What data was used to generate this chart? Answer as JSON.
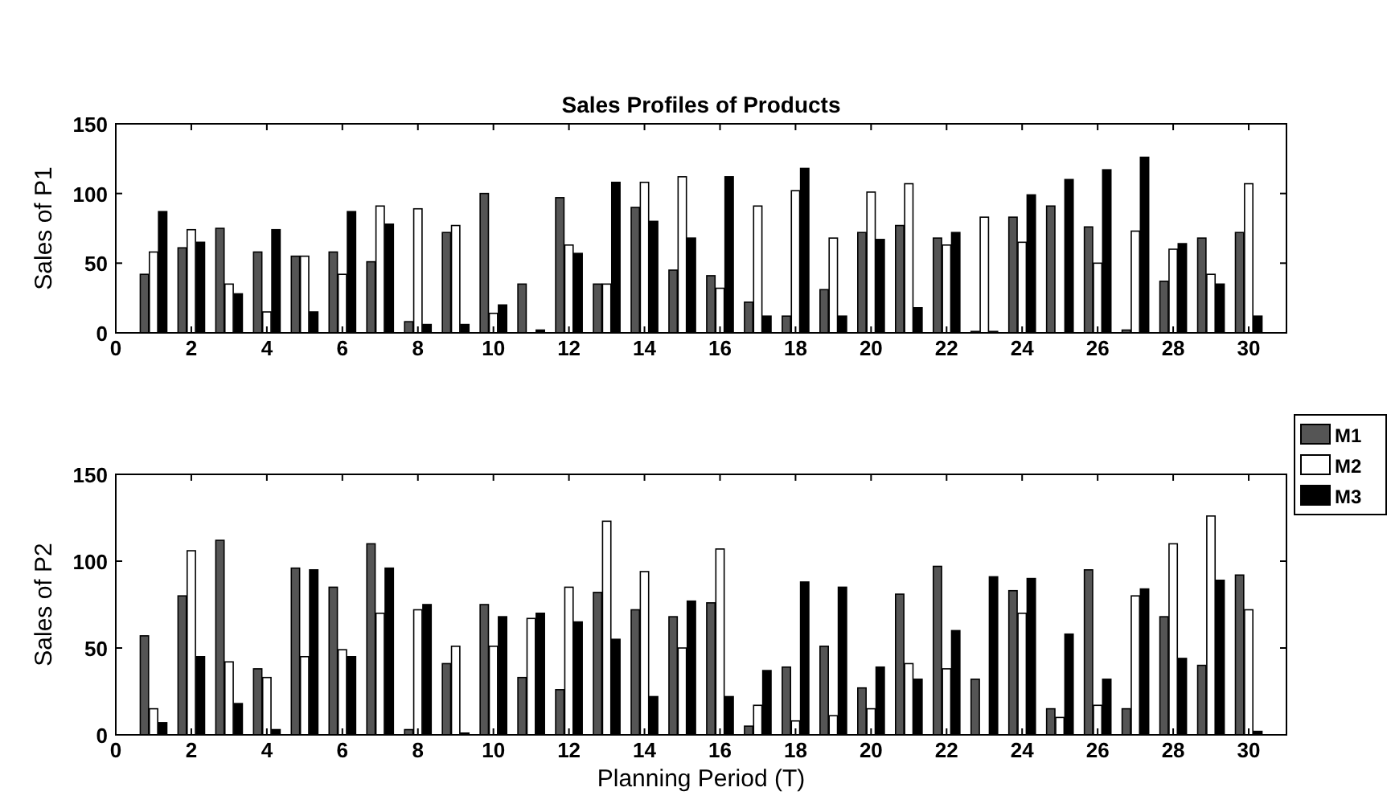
{
  "chart_data": [
    {
      "type": "bar",
      "title": "Sales Profiles of Products",
      "ylabel": "Sales of P1",
      "legend": "bottom right",
      "x": [
        1,
        2,
        3,
        4,
        5,
        6,
        7,
        8,
        9,
        10,
        11,
        12,
        13,
        14,
        15,
        16,
        17,
        18,
        19,
        20,
        21,
        22,
        23,
        24,
        25,
        26,
        27,
        28,
        29,
        30
      ],
      "xlim": [
        0,
        31
      ],
      "xticks": [
        0,
        2,
        4,
        6,
        8,
        10,
        12,
        14,
        16,
        18,
        20,
        22,
        24,
        26,
        28,
        30
      ],
      "ylim": [
        0,
        150
      ],
      "yticks": [
        0,
        50,
        100,
        150
      ],
      "series": [
        {
          "name": "M1",
          "color": "#555555",
          "values": [
            42,
            61,
            75,
            58,
            55,
            58,
            51,
            8,
            72,
            100,
            35,
            97,
            35,
            90,
            45,
            41,
            22,
            12,
            31,
            72,
            77,
            68,
            1,
            83,
            91,
            76,
            2,
            37,
            68,
            72
          ]
        },
        {
          "name": "M2",
          "color": "#ffffff",
          "values": [
            58,
            74,
            35,
            15,
            55,
            42,
            91,
            89,
            77,
            14,
            null,
            63,
            35,
            108,
            112,
            32,
            91,
            102,
            68,
            101,
            107,
            63,
            83,
            65,
            null,
            50,
            73,
            60,
            42,
            107
          ]
        },
        {
          "name": "M3",
          "color": "#000000",
          "values": [
            87,
            65,
            28,
            74,
            15,
            87,
            78,
            6,
            6,
            20,
            2,
            57,
            108,
            80,
            68,
            112,
            12,
            118,
            12,
            67,
            18,
            72,
            1,
            99,
            110,
            117,
            126,
            64,
            35,
            12
          ]
        }
      ]
    },
    {
      "type": "bar",
      "ylabel": "Sales of P2",
      "xlabel": "Planning Period (T)",
      "x": [
        1,
        2,
        3,
        4,
        5,
        6,
        7,
        8,
        9,
        10,
        11,
        12,
        13,
        14,
        15,
        16,
        17,
        18,
        19,
        20,
        21,
        22,
        23,
        24,
        25,
        26,
        27,
        28,
        29,
        30
      ],
      "xlim": [
        0,
        31
      ],
      "xticks": [
        0,
        2,
        4,
        6,
        8,
        10,
        12,
        14,
        16,
        18,
        20,
        22,
        24,
        26,
        28,
        30
      ],
      "ylim": [
        0,
        150
      ],
      "yticks": [
        0,
        50,
        100,
        150
      ],
      "series": [
        {
          "color": "#555555",
          "values": [
            57,
            80,
            112,
            38,
            96,
            85,
            110,
            3,
            41,
            75,
            33,
            26,
            82,
            72,
            68,
            76,
            5,
            39,
            51,
            27,
            81,
            97,
            32,
            83,
            15,
            95,
            15,
            68,
            40,
            92
          ]
        },
        {
          "color": "#ffffff",
          "values": [
            15,
            106,
            42,
            33,
            45,
            49,
            70,
            72,
            51,
            51,
            67,
            85,
            123,
            94,
            50,
            107,
            17,
            8,
            11,
            15,
            41,
            38,
            null,
            70,
            10,
            17,
            80,
            110,
            126,
            72
          ]
        },
        {
          "color": "#000000",
          "values": [
            7,
            45,
            18,
            3,
            95,
            45,
            96,
            75,
            1,
            68,
            70,
            65,
            55,
            22,
            77,
            22,
            37,
            88,
            85,
            39,
            32,
            60,
            91,
            90,
            58,
            32,
            84,
            44,
            89,
            2
          ]
        }
      ]
    }
  ]
}
